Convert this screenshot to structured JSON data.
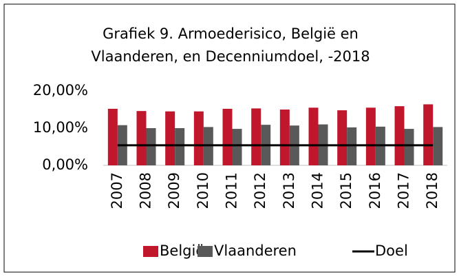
{
  "chart_data": {
    "type": "bar",
    "title": [
      "Grafiek 9. Armoederisico, België en",
      "Vlaanderen, en Decenniumdoel, -2018"
    ],
    "categories": [
      "2007",
      "2008",
      "2009",
      "2010",
      "2011",
      "2012",
      "2013",
      "2014",
      "2015",
      "2016",
      "2017",
      "2018"
    ],
    "series": [
      {
        "name": "België",
        "color": "#c0172d",
        "values": [
          15.2,
          14.6,
          14.5,
          14.5,
          15.2,
          15.3,
          15.0,
          15.5,
          14.8,
          15.5,
          15.9,
          16.4
        ]
      },
      {
        "name": "Vlaanderen",
        "color": "#595959",
        "values": [
          10.8,
          10.0,
          10.0,
          10.3,
          9.8,
          10.9,
          10.7,
          11.0,
          10.2,
          10.4,
          9.8,
          10.3
        ]
      },
      {
        "name": "Doel",
        "color": "#000000",
        "type": "line",
        "values": [
          5.4,
          5.4,
          5.4,
          5.4,
          5.4,
          5.4,
          5.4,
          5.4,
          5.4,
          5.4,
          5.4,
          5.4
        ]
      }
    ],
    "ylim": [
      0,
      20
    ],
    "yticks": [
      {
        "value": 0,
        "label": "0,00%"
      },
      {
        "value": 10,
        "label": "10,00%"
      },
      {
        "value": 20,
        "label": "20,00%"
      }
    ],
    "grid": false,
    "legend": "bottom"
  }
}
